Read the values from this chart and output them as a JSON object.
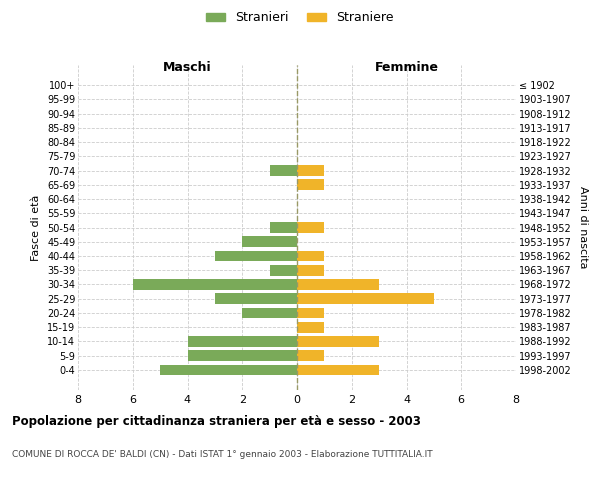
{
  "age_groups": [
    "100+",
    "95-99",
    "90-94",
    "85-89",
    "80-84",
    "75-79",
    "70-74",
    "65-69",
    "60-64",
    "55-59",
    "50-54",
    "45-49",
    "40-44",
    "35-39",
    "30-34",
    "25-29",
    "20-24",
    "15-19",
    "10-14",
    "5-9",
    "0-4"
  ],
  "birth_years": [
    "≤ 1902",
    "1903-1907",
    "1908-1912",
    "1913-1917",
    "1918-1922",
    "1923-1927",
    "1928-1932",
    "1933-1937",
    "1938-1942",
    "1943-1947",
    "1948-1952",
    "1953-1957",
    "1958-1962",
    "1963-1967",
    "1968-1972",
    "1973-1977",
    "1978-1982",
    "1983-1987",
    "1988-1992",
    "1993-1997",
    "1998-2002"
  ],
  "maschi": [
    0,
    0,
    0,
    0,
    0,
    0,
    1,
    0,
    0,
    0,
    1,
    2,
    3,
    1,
    6,
    3,
    2,
    0,
    4,
    4,
    5
  ],
  "femmine": [
    0,
    0,
    0,
    0,
    0,
    0,
    1,
    1,
    0,
    0,
    1,
    0,
    1,
    1,
    3,
    5,
    1,
    1,
    3,
    1,
    3
  ],
  "male_color": "#7aaa59",
  "female_color": "#f0b429",
  "title_main": "Popolazione per cittadinanza straniera per età e sesso - 2003",
  "title_sub": "COMUNE DI ROCCA DE' BALDI (CN) - Dati ISTAT 1° gennaio 2003 - Elaborazione TUTTITALIA.IT",
  "legend_male": "Stranieri",
  "legend_female": "Straniere",
  "label_maschi": "Maschi",
  "label_femmine": "Femmine",
  "ylabel_left": "Fasce di età",
  "ylabel_right": "Anni di nascita",
  "xlim": 8,
  "background_color": "#ffffff",
  "grid_color": "#cccccc",
  "male_color_legend": "#7aaa59",
  "female_color_legend": "#f0b429"
}
